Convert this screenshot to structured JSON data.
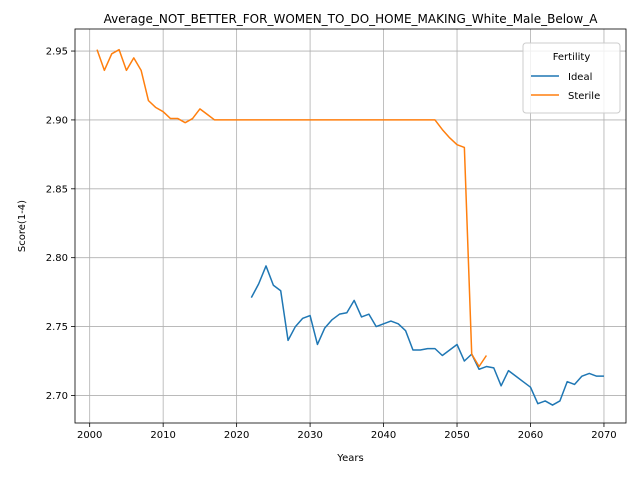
{
  "chart_data": {
    "type": "line",
    "title": "Average_NOT_BETTER_FOR_WOMEN_TO_DO_HOME_MAKING_White_Male_Below_A",
    "xlabel": "Years",
    "ylabel": "Score(1-4)",
    "xlim": [
      1998,
      2073
    ],
    "ylim": [
      2.68,
      2.966
    ],
    "xticks": [
      2000,
      2010,
      2020,
      2030,
      2040,
      2050,
      2060,
      2070
    ],
    "xtick_labels": [
      "2000",
      "2010",
      "2020",
      "2030",
      "2040",
      "2050",
      "2060",
      "2070"
    ],
    "yticks": [
      2.7,
      2.75,
      2.8,
      2.85,
      2.9,
      2.95
    ],
    "ytick_labels": [
      "2.70",
      "2.75",
      "2.80",
      "2.85",
      "2.90",
      "2.95"
    ],
    "grid": true,
    "legend": {
      "title": "Fertility",
      "placement": "top-right"
    },
    "series": [
      {
        "name": "Ideal",
        "color": "#1f77b4",
        "x": [
          2022,
          2023,
          2024,
          2025,
          2026,
          2027,
          2028,
          2029,
          2030,
          2031,
          2032,
          2033,
          2034,
          2035,
          2036,
          2037,
          2038,
          2039,
          2040,
          2041,
          2042,
          2043,
          2044,
          2045,
          2046,
          2047,
          2048,
          2049,
          2050,
          2051,
          2052,
          2053,
          2054,
          2055,
          2056,
          2057,
          2058,
          2059,
          2060,
          2061,
          2062,
          2063,
          2064,
          2065,
          2066,
          2067,
          2068,
          2069,
          2070
        ],
        "y": [
          2.771,
          2.781,
          2.794,
          2.78,
          2.776,
          2.74,
          2.75,
          2.756,
          2.758,
          2.737,
          2.749,
          2.755,
          2.759,
          2.76,
          2.769,
          2.757,
          2.759,
          2.75,
          2.752,
          2.754,
          2.752,
          2.747,
          2.733,
          2.733,
          2.734,
          2.734,
          2.729,
          2.733,
          2.737,
          2.725,
          2.73,
          2.719,
          2.721,
          2.72,
          2.707,
          2.718,
          2.714,
          2.71,
          2.706,
          2.694,
          2.696,
          2.693,
          2.696,
          2.71,
          2.708,
          2.714,
          2.716,
          2.714,
          2.714
        ]
      },
      {
        "name": "Sterile",
        "color": "#ff7f0e",
        "x": [
          2001,
          2002,
          2003,
          2004,
          2005,
          2006,
          2007,
          2008,
          2009,
          2010,
          2011,
          2012,
          2013,
          2014,
          2015,
          2016,
          2017,
          2018,
          2019,
          2020,
          2021,
          2022,
          2023,
          2024,
          2025,
          2026,
          2027,
          2028,
          2029,
          2030,
          2031,
          2032,
          2033,
          2034,
          2035,
          2036,
          2037,
          2038,
          2039,
          2040,
          2041,
          2042,
          2043,
          2044,
          2045,
          2046,
          2047,
          2048,
          2049,
          2050,
          2051,
          2052,
          2053,
          2054
        ],
        "y": [
          2.951,
          2.936,
          2.948,
          2.951,
          2.936,
          2.945,
          2.936,
          2.914,
          2.909,
          2.906,
          2.901,
          2.901,
          2.898,
          2.901,
          2.908,
          2.904,
          2.9,
          2.9,
          2.9,
          2.9,
          2.9,
          2.9,
          2.9,
          2.9,
          2.9,
          2.9,
          2.9,
          2.9,
          2.9,
          2.9,
          2.9,
          2.9,
          2.9,
          2.9,
          2.9,
          2.9,
          2.9,
          2.9,
          2.9,
          2.9,
          2.9,
          2.9,
          2.9,
          2.9,
          2.9,
          2.9,
          2.9,
          2.893,
          2.887,
          2.882,
          2.88,
          2.73,
          2.721,
          2.729
        ]
      }
    ]
  }
}
